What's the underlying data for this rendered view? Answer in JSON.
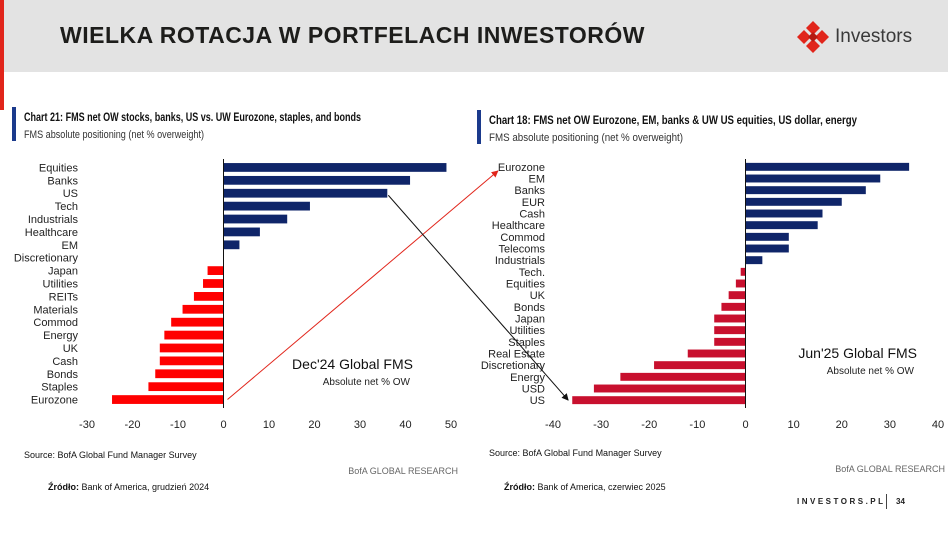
{
  "header": {
    "title": "WIELKA ROTACJA W PORTFELACH INWESTORÓW",
    "logo_text": "Investors"
  },
  "colors": {
    "positive": "#0f2569",
    "negative": "#ff0000",
    "negative_right": "#c8102e",
    "accent": "#e1251b",
    "chart_title_bar": "#1b3a8c"
  },
  "chart_data": [
    {
      "type": "bar",
      "orientation": "horizontal",
      "title": "Chart 21: FMS net OW stocks, banks, US vs. UW Eurozone, staples, and bonds",
      "subtitle": "FMS absolute positioning (net % overweight)",
      "categories": [
        "Equities",
        "Banks",
        "US",
        "Tech",
        "Industrials",
        "Healthcare",
        "EM",
        "Discretionary",
        "Japan",
        "Utilities",
        "REITs",
        "Materials",
        "Commod",
        "Energy",
        "UK",
        "Cash",
        "Bonds",
        "Staples",
        "Eurozone"
      ],
      "values": [
        49,
        41,
        36,
        19,
        14,
        8,
        3.5,
        0,
        -3.5,
        -4.5,
        -6.5,
        -9,
        -11.5,
        -13,
        -14,
        -14,
        -15,
        -16.5,
        -24.5
      ],
      "xlim": [
        -30,
        50
      ],
      "xticks": [
        -30,
        -20,
        -10,
        0,
        10,
        20,
        30,
        40,
        50
      ],
      "annotation": "Dec'24 Global FMS",
      "annotation_sub": "Absolute net % OW",
      "source": "Source: BofA Global Fund Manager Survey",
      "watermark": "BofA GLOBAL RESEARCH"
    },
    {
      "type": "bar",
      "orientation": "horizontal",
      "title": "Chart 18: FMS net OW Eurozone, EM, banks & UW US equities, US dollar, energy",
      "subtitle": "FMS absolute positioning (net % overweight)",
      "categories": [
        "Eurozone",
        "EM",
        "Banks",
        "EUR",
        "Cash",
        "Healthcare",
        "Commod",
        "Telecoms",
        "Industrials",
        "Tech.",
        "Equities",
        "UK",
        "Bonds",
        "Japan",
        "Utilities",
        "Staples",
        "Real Estate",
        "Discretionary",
        "Energy",
        "USD",
        "US"
      ],
      "values": [
        34,
        28,
        25,
        20,
        16,
        15,
        9,
        9,
        3.5,
        -1,
        -2,
        -3.5,
        -5,
        -6.5,
        -6.5,
        -6.5,
        -12,
        -19,
        -26,
        -31.5,
        -36
      ],
      "xlim": [
        -40,
        40
      ],
      "xticks": [
        -40,
        -30,
        -20,
        -10,
        0,
        10,
        20,
        30,
        40
      ],
      "annotation": "Jun'25 Global FMS",
      "annotation_sub": "Absolute net % OW",
      "source": "Source: BofA Global Fund Manager Survey",
      "watermark": "BofA GLOBAL RESEARCH"
    }
  ],
  "notes": {
    "left_label": "Źródło:",
    "left_text": "Bank of America, grudzień 2024",
    "right_label": "Źródło:",
    "right_text": "Bank of America, czerwiec 2025"
  },
  "footer": {
    "site": "INVESTORS.PL",
    "page": "34"
  }
}
